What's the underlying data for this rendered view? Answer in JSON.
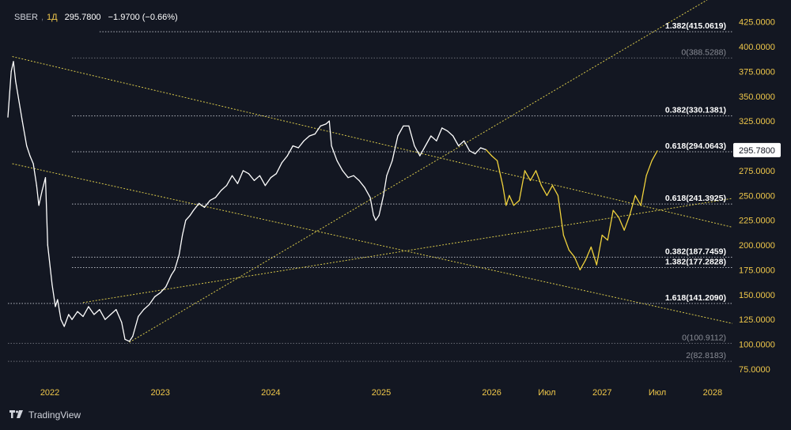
{
  "header": {
    "symbol": "SBER",
    "interval": "1Д",
    "price": "295.7800",
    "change": "−1.9700 (−0.66%)"
  },
  "brand": {
    "name": "TradingView",
    "icon": "tradingview-logo-icon"
  },
  "colors": {
    "background": "#131722",
    "price_line": "#ffffff",
    "projection": "#f0d23c",
    "trendline": "#d8c84a",
    "level_line": "#9598a1",
    "axis_text": "#f0c84a",
    "label_bright": "#ffffff",
    "label_dim": "#8a8d96"
  },
  "chart_data": {
    "type": "line",
    "title": "",
    "xlabel": "",
    "ylabel": "",
    "x_axis": {
      "ticks": [
        {
          "label": "2022",
          "t": 2022.0
        },
        {
          "label": "2023",
          "t": 2023.0
        },
        {
          "label": "2024",
          "t": 2024.0
        },
        {
          "label": "2025",
          "t": 2025.0
        },
        {
          "label": "2026",
          "t": 2026.0
        },
        {
          "label": "Июл",
          "t": 2026.5
        },
        {
          "label": "2027",
          "t": 2027.0
        },
        {
          "label": "Июл",
          "t": 2027.5
        },
        {
          "label": "2028",
          "t": 2028.0
        }
      ],
      "range": [
        2021.62,
        2028.18
      ]
    },
    "y_axis": {
      "ticks": [
        "75.0000",
        "100.0000",
        "125.0000",
        "150.0000",
        "175.0000",
        "200.0000",
        "225.0000",
        "250.0000",
        "275.0000",
        "300.0000",
        "325.0000",
        "350.0000",
        "375.0000",
        "400.0000",
        "425.0000"
      ],
      "ylim": [
        63,
        447
      ],
      "current_price_label": "295.7800",
      "current_price": 295.78
    },
    "series": [
      {
        "role": "price",
        "points": [
          [
            2021.62,
            329
          ],
          [
            2021.65,
            375
          ],
          [
            2021.67,
            385
          ],
          [
            2021.69,
            365
          ],
          [
            2021.72,
            345
          ],
          [
            2021.75,
            325
          ],
          [
            2021.79,
            300
          ],
          [
            2021.82,
            290
          ],
          [
            2021.85,
            282
          ],
          [
            2021.88,
            260
          ],
          [
            2021.9,
            240
          ],
          [
            2021.93,
            255
          ],
          [
            2021.96,
            268
          ],
          [
            2021.98,
            200
          ],
          [
            2022.02,
            160
          ],
          [
            2022.05,
            138
          ],
          [
            2022.07,
            145
          ],
          [
            2022.1,
            125
          ],
          [
            2022.13,
            118
          ],
          [
            2022.17,
            130
          ],
          [
            2022.2,
            125
          ],
          [
            2022.25,
            133
          ],
          [
            2022.3,
            128
          ],
          [
            2022.35,
            138
          ],
          [
            2022.4,
            130
          ],
          [
            2022.45,
            135
          ],
          [
            2022.5,
            125
          ],
          [
            2022.55,
            130
          ],
          [
            2022.6,
            135
          ],
          [
            2022.65,
            122
          ],
          [
            2022.68,
            105
          ],
          [
            2022.72,
            103
          ],
          [
            2022.75,
            108
          ],
          [
            2022.8,
            128
          ],
          [
            2022.85,
            135
          ],
          [
            2022.9,
            140
          ],
          [
            2022.95,
            148
          ],
          [
            2023.0,
            152
          ],
          [
            2023.05,
            158
          ],
          [
            2023.1,
            170
          ],
          [
            2023.13,
            175
          ],
          [
            2023.17,
            190
          ],
          [
            2023.2,
            210
          ],
          [
            2023.23,
            225
          ],
          [
            2023.27,
            230
          ],
          [
            2023.3,
            235
          ],
          [
            2023.35,
            242
          ],
          [
            2023.4,
            238
          ],
          [
            2023.45,
            245
          ],
          [
            2023.5,
            248
          ],
          [
            2023.55,
            255
          ],
          [
            2023.6,
            260
          ],
          [
            2023.65,
            270
          ],
          [
            2023.7,
            262
          ],
          [
            2023.75,
            275
          ],
          [
            2023.8,
            272
          ],
          [
            2023.85,
            265
          ],
          [
            2023.9,
            270
          ],
          [
            2023.95,
            260
          ],
          [
            2024.0,
            268
          ],
          [
            2024.05,
            272
          ],
          [
            2024.1,
            283
          ],
          [
            2024.15,
            290
          ],
          [
            2024.2,
            300
          ],
          [
            2024.25,
            298
          ],
          [
            2024.3,
            305
          ],
          [
            2024.35,
            310
          ],
          [
            2024.4,
            312
          ],
          [
            2024.45,
            320
          ],
          [
            2024.5,
            322
          ],
          [
            2024.53,
            325
          ],
          [
            2024.55,
            300
          ],
          [
            2024.6,
            285
          ],
          [
            2024.65,
            275
          ],
          [
            2024.7,
            268
          ],
          [
            2024.75,
            270
          ],
          [
            2024.8,
            265
          ],
          [
            2024.85,
            258
          ],
          [
            2024.9,
            248
          ],
          [
            2024.93,
            230
          ],
          [
            2024.95,
            225
          ],
          [
            2024.98,
            230
          ],
          [
            2025.02,
            250
          ],
          [
            2025.05,
            270
          ],
          [
            2025.1,
            285
          ],
          [
            2025.15,
            310
          ],
          [
            2025.2,
            320
          ],
          [
            2025.25,
            320
          ],
          [
            2025.3,
            300
          ],
          [
            2025.35,
            290
          ],
          [
            2025.4,
            300
          ],
          [
            2025.45,
            310
          ],
          [
            2025.5,
            305
          ],
          [
            2025.55,
            318
          ],
          [
            2025.6,
            315
          ],
          [
            2025.65,
            310
          ],
          [
            2025.7,
            300
          ],
          [
            2025.75,
            305
          ],
          [
            2025.8,
            295
          ],
          [
            2025.85,
            292
          ],
          [
            2025.9,
            298
          ],
          [
            2025.95,
            296
          ]
        ]
      },
      {
        "role": "projection",
        "points": [
          [
            2025.95,
            296
          ],
          [
            2026.0,
            290
          ],
          [
            2026.05,
            285
          ],
          [
            2026.1,
            260
          ],
          [
            2026.13,
            240
          ],
          [
            2026.16,
            250
          ],
          [
            2026.2,
            240
          ],
          [
            2026.25,
            245
          ],
          [
            2026.3,
            275
          ],
          [
            2026.35,
            265
          ],
          [
            2026.4,
            275
          ],
          [
            2026.45,
            260
          ],
          [
            2026.5,
            250
          ],
          [
            2026.55,
            260
          ],
          [
            2026.6,
            250
          ],
          [
            2026.65,
            210
          ],
          [
            2026.7,
            195
          ],
          [
            2026.75,
            188
          ],
          [
            2026.8,
            175
          ],
          [
            2026.85,
            185
          ],
          [
            2026.9,
            198
          ],
          [
            2026.95,
            180
          ],
          [
            2027.0,
            210
          ],
          [
            2027.05,
            205
          ],
          [
            2027.1,
            235
          ],
          [
            2027.15,
            228
          ],
          [
            2027.2,
            215
          ],
          [
            2027.25,
            230
          ],
          [
            2027.3,
            250
          ],
          [
            2027.35,
            240
          ],
          [
            2027.4,
            270
          ],
          [
            2027.45,
            285
          ],
          [
            2027.5,
            295
          ]
        ]
      }
    ],
    "levels": [
      {
        "label": "1.382(415.0619)",
        "value": 415.0619,
        "style": "bright",
        "x_start": 2022.45
      },
      {
        "label": "0(388.5288)",
        "value": 388.5288,
        "style": "dim",
        "x_start": 2022.2
      },
      {
        "label": "0.382(330.1381)",
        "value": 330.1381,
        "style": "bright",
        "x_start": 2022.2
      },
      {
        "label": "0.618(294.0643)",
        "value": 294.0643,
        "style": "bright",
        "x_start": 2022.2
      },
      {
        "label": "0.618(241.3925)",
        "value": 241.3925,
        "style": "bright",
        "x_start": 2022.2
      },
      {
        "label": "0.382(187.7459)",
        "value": 187.7459,
        "style": "bright",
        "x_start": 2022.2
      },
      {
        "label": "1.382(177.2828)",
        "value": 177.2828,
        "style": "bright",
        "x_start": 2022.2
      },
      {
        "label": "1.618(141.2090)",
        "value": 141.209,
        "style": "bright",
        "x_start": 2021.62
      },
      {
        "label": "0(100.9112)",
        "value": 100.9112,
        "style": "dim",
        "x_start": 2021.62
      },
      {
        "label": "2(82.8183)",
        "value": 82.8183,
        "style": "dim",
        "x_start": 2021.62
      }
    ],
    "trendlines": [
      {
        "from": [
          2021.66,
          390
        ],
        "to": [
          2028.18,
          218
        ]
      },
      {
        "from": [
          2021.66,
          282
        ],
        "to": [
          2028.18,
          121
        ]
      },
      {
        "from": [
          2022.72,
          102
        ],
        "to": [
          2027.95,
          447
        ]
      },
      {
        "from": [
          2022.3,
          142
        ],
        "to": [
          2028.18,
          247
        ]
      }
    ]
  }
}
